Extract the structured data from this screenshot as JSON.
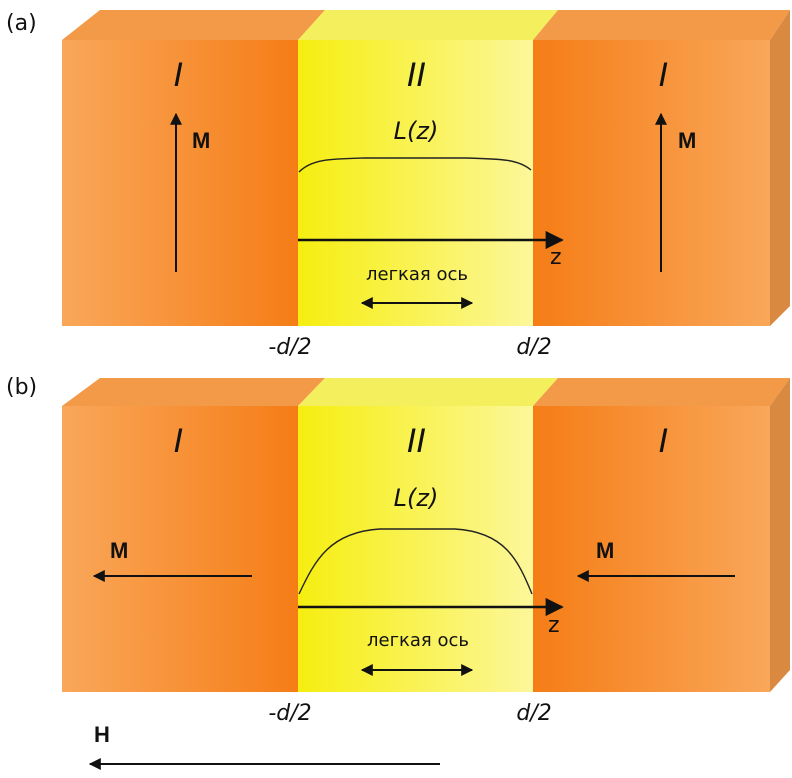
{
  "colors": {
    "orange_light": "#f9a454",
    "orange_dark": "#f57f1a",
    "orange_top": "#f39a48",
    "orange_side": "#d98a40",
    "yellow_bright": "#f5ef12",
    "yellow_light": "#fbf58c",
    "yellow_top": "#f3ef5a",
    "ink": "#111111"
  },
  "panels": [
    {
      "tag": "(a)",
      "region_left": "I",
      "region_middle": "II",
      "region_right": "I",
      "function_label": "L(z)",
      "axis_label": "z",
      "easy_axis_label": "легкая ось",
      "boundary_left": "-d/2",
      "boundary_right": "d/2",
      "m_left": "M",
      "m_right": "M"
    },
    {
      "tag": "(b)",
      "region_left": "I",
      "region_middle": "II",
      "region_right": "I",
      "function_label": "L(z)",
      "axis_label": "z",
      "easy_axis_label": "легкая ось",
      "boundary_left": "-d/2",
      "boundary_right": "d/2",
      "m_left": "M",
      "m_right": "M"
    }
  ],
  "field": {
    "label": "H"
  }
}
